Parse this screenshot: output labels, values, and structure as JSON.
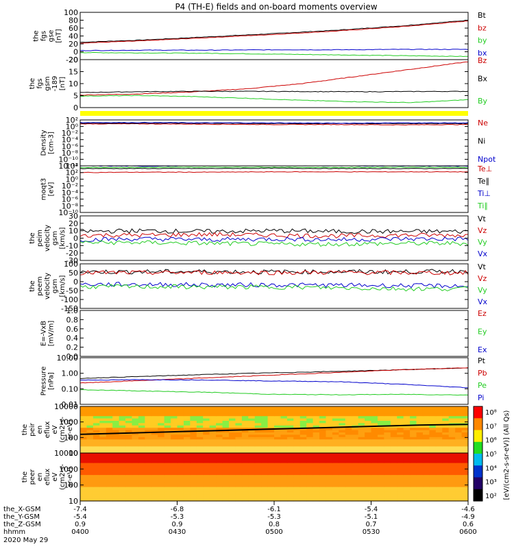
{
  "title": "P4 (TH-E) fields and on-board moments overview",
  "colors": {
    "black": "#000000",
    "red": "#cc0000",
    "green": "#22cc22",
    "blue": "#0000cc",
    "yellow": "#ffff00"
  },
  "chart_data": [
    {
      "type": "line",
      "ylabel": [
        "the",
        "fgs",
        "gse",
        "[nT]"
      ],
      "yticks": [
        "100",
        "80",
        "60",
        "40",
        "20",
        "0",
        "-20"
      ],
      "ylim": [
        -20,
        100
      ],
      "legend": [
        {
          "name": "Bt",
          "color": "black"
        },
        {
          "name": "bz",
          "color": "red"
        },
        {
          "name": "by",
          "color": "green"
        },
        {
          "name": "bx",
          "color": "blue"
        }
      ],
      "series": [
        {
          "name": "Bt",
          "color": "black",
          "values": [
            24,
            30,
            38,
            46,
            55,
            66,
            80
          ]
        },
        {
          "name": "bz",
          "color": "red",
          "values": [
            22,
            28,
            36,
            44,
            53,
            64,
            78
          ]
        },
        {
          "name": "by",
          "color": "green",
          "values": [
            -2,
            -3,
            -4,
            -6,
            -8,
            -10,
            -12
          ]
        },
        {
          "name": "bx",
          "color": "blue",
          "values": [
            3,
            4,
            4,
            5,
            5,
            6,
            6
          ]
        }
      ]
    },
    {
      "type": "line",
      "ylabel": [
        "the",
        "fgs",
        "gsm",
        "-189",
        "[nT]"
      ],
      "yticks": [
        "20",
        "15",
        "10",
        "5",
        "0"
      ],
      "ylim": [
        -2,
        21
      ],
      "legend": [
        {
          "name": "Bz",
          "color": "red",
          "pos": "top"
        },
        {
          "name": "Bx",
          "color": "black"
        },
        {
          "name": "By",
          "color": "green"
        }
      ],
      "series": [
        {
          "name": "Bz",
          "color": "red",
          "values": [
            4,
            4.5,
            5.5,
            7,
            9.5,
            13,
            16.5,
            20
          ]
        },
        {
          "name": "Bx",
          "color": "black",
          "values": [
            5.2,
            5.6,
            5.8,
            5.8,
            5.7,
            5.6,
            5.7,
            5.8
          ]
        },
        {
          "name": "By",
          "color": "green",
          "values": [
            3.5,
            3.8,
            3.3,
            2.5,
            1.5,
            0.8,
            0.4,
            1.8
          ]
        }
      ]
    },
    {
      "type": "line",
      "ylabel": [
        "Density",
        "[cm-3]"
      ],
      "yticks": [
        "10²",
        "10⁰",
        "10⁻²",
        "10⁻⁴",
        "10⁻⁶",
        "10⁻⁸",
        "10⁻¹⁰",
        "10⁻¹²"
      ],
      "ylim": [
        -12,
        2
      ],
      "log": true,
      "legend": [
        {
          "name": "Ne",
          "color": "red"
        },
        {
          "name": "Ni",
          "color": "black"
        },
        {
          "name": "Npot",
          "color": "blue"
        }
      ],
      "series": [
        {
          "name": "Ne",
          "color": "red",
          "values": [
            0.8,
            0.8,
            0.7,
            0.6,
            0.6,
            0.5,
            0.6
          ]
        },
        {
          "name": "Ni",
          "color": "black",
          "values": [
            1.0,
            1.0,
            1.0,
            0.9,
            0.9,
            0.9,
            0.9
          ]
        },
        {
          "name": "Npot",
          "color": "blue",
          "values": [
            1.2,
            1.2,
            1.1,
            1.1,
            1.0,
            1.1,
            1.1
          ]
        }
      ]
    },
    {
      "type": "line",
      "ylabel": [
        "moqt3",
        "[eV]"
      ],
      "yticks": [
        "10⁴",
        "10²",
        "10⁰",
        "10⁻²",
        "10⁻⁴",
        "10⁻⁶",
        "10⁻⁸",
        "10⁻¹⁰"
      ],
      "ylim": [
        -10,
        4
      ],
      "log": true,
      "legend": [
        {
          "name": "Te⊥",
          "color": "red"
        },
        {
          "name": "Te∥",
          "color": "black"
        },
        {
          "name": "Ti⊥",
          "color": "blue"
        },
        {
          "name": "Ti∥",
          "color": "green"
        }
      ],
      "series": [
        {
          "name": "Ti⊥",
          "color": "blue",
          "values": [
            4.0,
            3.9,
            4.1,
            4.1,
            4.0,
            4.0,
            3.9
          ]
        },
        {
          "name": "Ti∥",
          "color": "green",
          "values": [
            3.5,
            3.5,
            3.6,
            3.6,
            3.5,
            3.6,
            3.5
          ]
        },
        {
          "name": "Te∥",
          "color": "black",
          "values": [
            3.2,
            3.2,
            3.2,
            3.3,
            3.2,
            3.2,
            3.2
          ]
        },
        {
          "name": "Te⊥",
          "color": "red",
          "values": [
            2.0,
            2.1,
            2.1,
            2.2,
            2.2,
            2.2,
            2.2
          ]
        }
      ]
    },
    {
      "type": "line",
      "ylabel": [
        "the",
        "peim",
        "velocity",
        "gsm",
        "[km/s]"
      ],
      "yticks": [
        "30",
        "20",
        "10",
        "0",
        "-10",
        "-20",
        "-30"
      ],
      "ylim": [
        -30,
        30
      ],
      "legend": [
        {
          "name": "Vt",
          "color": "black"
        },
        {
          "name": "Vz",
          "color": "red"
        },
        {
          "name": "Vy",
          "color": "green"
        },
        {
          "name": "Vx",
          "color": "blue"
        }
      ],
      "series": [
        {
          "name": "Vt",
          "color": "black",
          "values": [
            9,
            10,
            9,
            10,
            9,
            9,
            9
          ]
        },
        {
          "name": "Vz",
          "color": "red",
          "values": [
            4,
            4,
            5,
            4,
            3,
            4,
            4
          ]
        },
        {
          "name": "Vx",
          "color": "blue",
          "values": [
            -2,
            -1,
            -2,
            -1,
            -2,
            -1,
            -1
          ]
        },
        {
          "name": "Vy",
          "color": "green",
          "values": [
            -6,
            -6,
            -7,
            -8,
            -8,
            -7,
            -7
          ]
        }
      ]
    },
    {
      "type": "line",
      "ylabel": [
        "the",
        "peem",
        "velocity",
        "gsm",
        "[km/s]"
      ],
      "yticks": [
        "100",
        "50",
        "0",
        "-50",
        "-100",
        "-150"
      ],
      "ylim": [
        -150,
        100
      ],
      "legend": [
        {
          "name": "Vt",
          "color": "black"
        },
        {
          "name": "Vz",
          "color": "red"
        },
        {
          "name": "Vy",
          "color": "green"
        },
        {
          "name": "Vx",
          "color": "blue"
        }
      ],
      "series": [
        {
          "name": "Vt",
          "color": "black",
          "values": [
            55,
            56,
            57,
            55,
            56,
            55,
            60
          ]
        },
        {
          "name": "Vz",
          "color": "red",
          "values": [
            50,
            50,
            52,
            51,
            52,
            50,
            50
          ]
        },
        {
          "name": "Vx",
          "color": "blue",
          "values": [
            -15,
            -15,
            -18,
            -18,
            -20,
            -22,
            -25
          ]
        },
        {
          "name": "Vy",
          "color": "green",
          "values": [
            -28,
            -28,
            -30,
            -30,
            -35,
            -40,
            -40
          ]
        }
      ]
    },
    {
      "type": "line",
      "ylabel": [
        "E=-VxB",
        "[mV/m]"
      ],
      "yticks": [
        "1.0",
        "0.8",
        "0.6",
        "0.4",
        "0.2",
        "0.0"
      ],
      "ylim": [
        0,
        1
      ],
      "legend": [
        {
          "name": "Ez",
          "color": "red"
        },
        {
          "name": "Ey",
          "color": "green"
        },
        {
          "name": "Ex",
          "color": "blue"
        }
      ],
      "series": []
    },
    {
      "type": "line",
      "ylabel": [
        "Pressure",
        "[nPa]"
      ],
      "yticks": [
        "10.00",
        "1.00",
        "0.10",
        "0.01"
      ],
      "ylim": [
        -2.3,
        1.2
      ],
      "log": true,
      "legend": [
        {
          "name": "Pt",
          "color": "black"
        },
        {
          "name": "Pb",
          "color": "red"
        },
        {
          "name": "Pe",
          "color": "green"
        },
        {
          "name": "Pi",
          "color": "blue"
        }
      ],
      "series": [
        {
          "name": "Pt",
          "color": "black",
          "values": [
            -0.35,
            -0.2,
            -0.05,
            0.07,
            0.18,
            0.3,
            0.44
          ]
        },
        {
          "name": "Pb",
          "color": "red",
          "values": [
            -0.7,
            -0.5,
            -0.3,
            -0.1,
            0.1,
            0.3,
            0.45
          ]
        },
        {
          "name": "Pi",
          "color": "blue",
          "values": [
            -0.48,
            -0.45,
            -0.47,
            -0.55,
            -0.6,
            -0.8,
            -1.05
          ]
        },
        {
          "name": "Pe",
          "color": "green",
          "values": [
            -1.2,
            -1.3,
            -1.4,
            -1.55,
            -1.58,
            -1.55,
            -1.6
          ]
        }
      ]
    },
    {
      "type": "heatmap",
      "ylabel": [
        "the",
        "peir",
        "en",
        "eflux",
        "eV",
        "(cm2-s-",
        "sr-eV)"
      ],
      "yticks": [
        "10000",
        "1000",
        "100",
        "10"
      ],
      "ylim": [
        0.8,
        4.3
      ],
      "log": true,
      "overlay": [
        {
          "name": "black trace",
          "color": "black",
          "values": [
            2.2,
            2.3,
            2.4,
            2.5,
            2.6,
            2.7,
            2.8,
            2.9,
            2.95
          ]
        }
      ]
    },
    {
      "type": "heatmap",
      "ylabel": [
        "the",
        "peer",
        "en",
        "eflux",
        "eV",
        "(cm2-s-",
        "sr-eV)"
      ],
      "yticks": [
        "10000",
        "1000",
        "100",
        "10"
      ],
      "ylim": [
        0.8,
        4.3
      ],
      "log": true,
      "colorbar_label": "[eV/(cm2-s-sr-eV)] (All Qs)",
      "colorbar_ticks": [
        "10⁸",
        "10⁷",
        "10⁶",
        "10⁵",
        "10⁴",
        "10³",
        "10²"
      ]
    }
  ],
  "xaxis": {
    "row_labels": [
      "the_X-GSM",
      "the_Y-GSM",
      "the_Z-GSM",
      "hhmm",
      "2020 May 29"
    ],
    "ticks": [
      {
        "x": "-7.4",
        "y": "-5.4",
        "z": "0.9",
        "t": "0400"
      },
      {
        "x": "-6.8",
        "y": "-5.3",
        "z": "0.9",
        "t": "0430"
      },
      {
        "x": "-6.1",
        "y": "-5.3",
        "z": "0.8",
        "t": "0500"
      },
      {
        "x": "-5.4",
        "y": "-5.1",
        "z": "0.7",
        "t": "0530"
      },
      {
        "x": "-4.6",
        "y": "-4.9",
        "z": "0.6",
        "t": "0600"
      }
    ]
  }
}
